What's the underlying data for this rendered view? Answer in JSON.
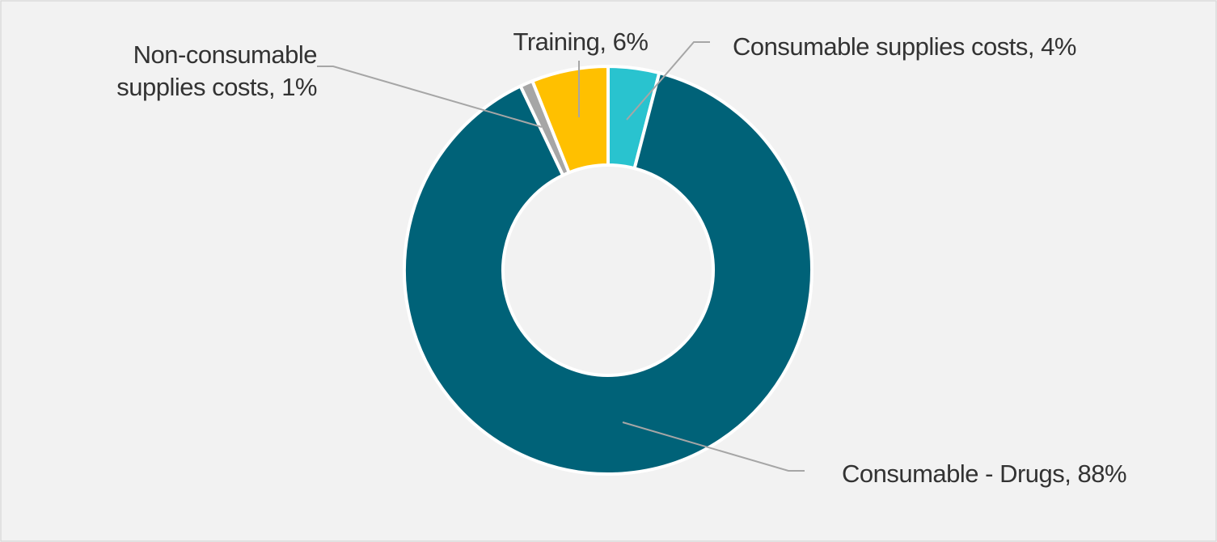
{
  "chart_data": {
    "type": "pie",
    "variant": "donut",
    "title": "",
    "categories": [
      "Consumable supplies costs",
      "Consumable - Drugs",
      "Non-consumable supplies costs",
      "Training"
    ],
    "values": [
      4,
      88,
      1,
      6
    ],
    "colors": [
      "#29c3cf",
      "#006278",
      "#a6a6a6",
      "#ffc000"
    ],
    "data_labels": [
      [
        "Consumable supplies costs, 4%"
      ],
      [
        "Consumable - Drugs, 88%"
      ],
      [
        "Non-consumable",
        "supplies costs, 1%"
      ],
      [
        "Training, 6%"
      ]
    ],
    "legend": "none",
    "grid": false,
    "background_color": "#f2f2f2",
    "border_color": "#d9d9d9",
    "slice_separator_color": "#ffffff"
  }
}
